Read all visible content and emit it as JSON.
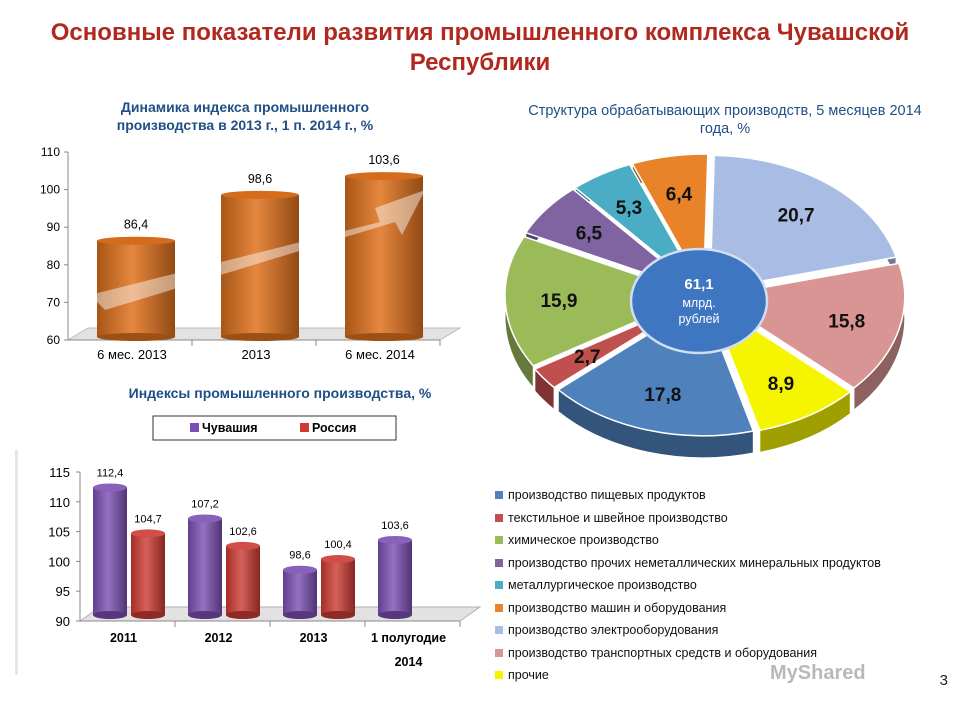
{
  "title": "Основные показатели развития промышленного комплекса Чувашской Республики",
  "page_number": "3",
  "watermark": "MyShared",
  "chart_data": [
    {
      "type": "bar",
      "title": "Динамика индекса промышленного производства в 2013 г., 1 п. 2014 г., %",
      "categories": [
        "6 мес. 2013",
        "2013",
        "6 мес. 2014"
      ],
      "values": [
        86.4,
        98.6,
        103.6
      ],
      "value_labels": [
        "86,4",
        "98,6",
        "103,6"
      ],
      "ylim": [
        60,
        110
      ],
      "yticks": [
        "60",
        "70",
        "80",
        "90",
        "100",
        "110"
      ],
      "color": "#e0721d"
    },
    {
      "type": "pie",
      "title": "Структура обрабатывающих производств, 5 месяцев 2014 года, %",
      "center_value": "61,1",
      "center_unit": "млрд.",
      "center_unit2": "рублей",
      "slices": [
        {
          "label": "производство машин и оборудования",
          "value": 6.4,
          "text": "6,4",
          "color": "#e8832a"
        },
        {
          "label": "производство электрооборудования",
          "value": 20.7,
          "text": "20,7",
          "color": "#a9bde4"
        },
        {
          "label": "производство транспортных средств и оборудования",
          "value": 15.8,
          "text": "15,8",
          "color": "#d99594"
        },
        {
          "label": "прочие",
          "value": 8.9,
          "text": "8,9",
          "color": "#f5f500"
        },
        {
          "label": "производство пищевых продуктов",
          "value": 17.8,
          "text": "17,8",
          "color": "#4f81bd"
        },
        {
          "label": "текстильное и швейное производство",
          "value": 2.7,
          "text": "2,7",
          "color": "#c0504d"
        },
        {
          "label": "химическое производство",
          "value": 15.9,
          "text": "15,9",
          "color": "#9bbb59"
        },
        {
          "label": "производство прочих неметаллических минеральных продуктов",
          "value": 6.5,
          "text": "6,5",
          "color": "#8064a2"
        },
        {
          "label": "металлургическое производство",
          "value": 5.3,
          "text": "5,3",
          "color": "#4bacc6"
        }
      ],
      "legend": [
        {
          "label": "производство пищевых продуктов",
          "color": "#4f81bd"
        },
        {
          "label": "текстильное и швейное производство",
          "color": "#c0504d"
        },
        {
          "label": "химическое производство",
          "color": "#9bbb59"
        },
        {
          "label": "производство прочих неметаллических минеральных продуктов",
          "color": "#8064a2"
        },
        {
          "label": "металлургическое производство",
          "color": "#4bacc6"
        },
        {
          "label": "производство машин и оборудования",
          "color": "#e8832a"
        },
        {
          "label": "производство электрооборудования",
          "color": "#a9bde4"
        },
        {
          "label": "производство транспортных средств и оборудования",
          "color": "#d99594"
        },
        {
          "label": "прочие",
          "color": "#f5f500"
        }
      ]
    },
    {
      "type": "bar",
      "title": "Индексы промышленного производства, %",
      "categories": [
        "2011",
        "2012",
        "2013",
        "1 полугодие 2014"
      ],
      "category_lines": [
        [
          "2011"
        ],
        [
          "2012"
        ],
        [
          "2013"
        ],
        [
          "1 полугодие",
          "2014"
        ]
      ],
      "series": [
        {
          "name": "Чувашия",
          "values": [
            112.4,
            107.2,
            98.6,
            103.6
          ],
          "labels": [
            "112,4",
            "107,2",
            "98,6",
            "103,6"
          ],
          "color": "#7b4fb3"
        },
        {
          "name": "Россия",
          "values": [
            104.7,
            102.6,
            100.4,
            null
          ],
          "labels": [
            "104,7",
            "102,6",
            "100,4",
            ""
          ],
          "color": "#cc3a32"
        }
      ],
      "ylim": [
        90,
        115
      ],
      "yticks": [
        "90",
        "95",
        "100",
        "105",
        "110",
        "115"
      ]
    }
  ]
}
